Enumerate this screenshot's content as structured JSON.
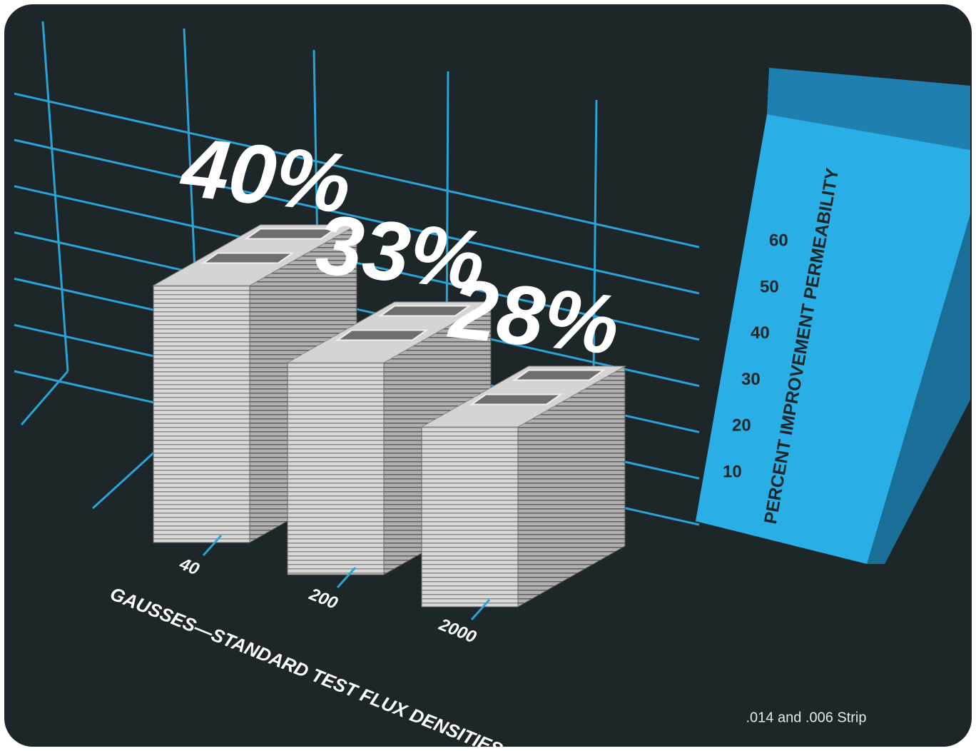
{
  "chart_data": {
    "type": "bar",
    "xlabel": "GAUSSES—STANDARD TEST FLUX DENSITIES",
    "ylabel": "PERCENT IMPROVEMENT PERMEABILITY",
    "note": ".014 and .006 Strip",
    "categories": [
      "40",
      "200",
      "2000"
    ],
    "values": [
      40,
      33,
      28
    ],
    "value_labels": [
      "40%",
      "33%",
      "28%"
    ],
    "color": "#d4d4d4",
    "ylim": [
      0,
      70
    ],
    "yticks": [
      10,
      20,
      30,
      40,
      50,
      60
    ],
    "grid": true
  }
}
